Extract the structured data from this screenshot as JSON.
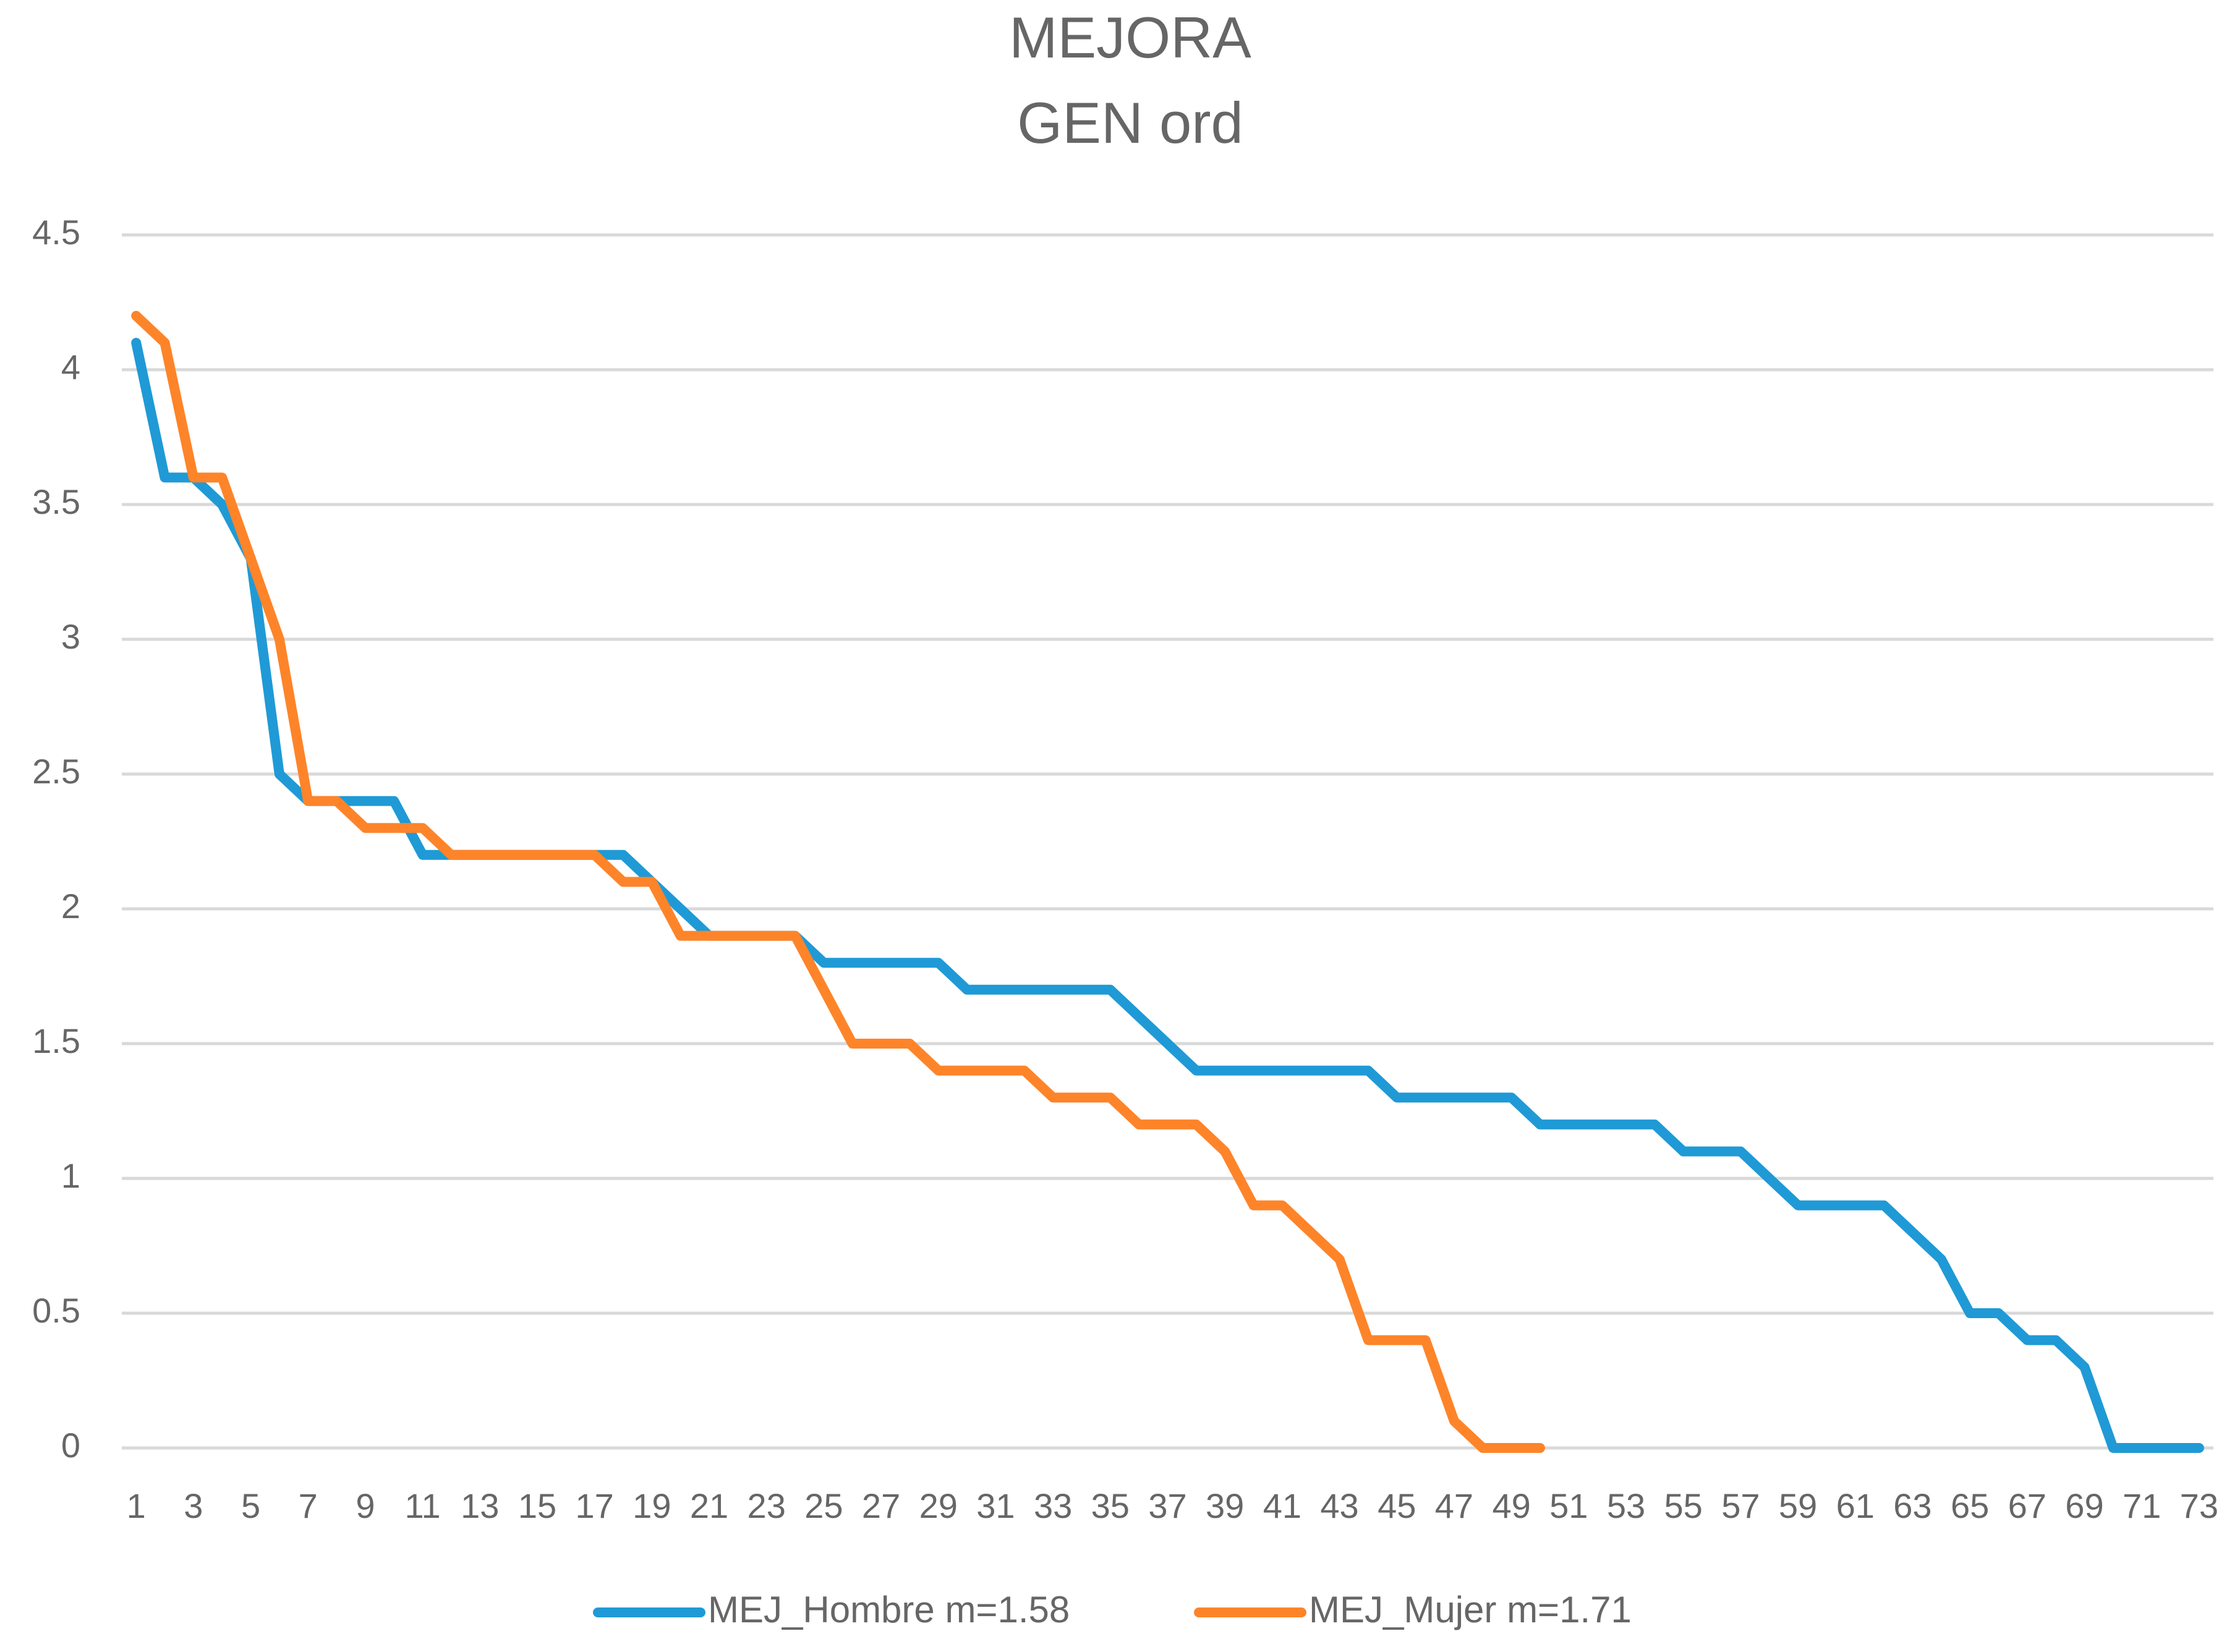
{
  "chart_data": {
    "type": "line",
    "title": "MEJORA",
    "subtitle": "GEN ord",
    "categories": [
      "1",
      null,
      "3",
      null,
      "5",
      null,
      "7",
      null,
      "9",
      null,
      "11",
      null,
      "13",
      null,
      "15",
      null,
      "17",
      null,
      "19",
      null,
      "21",
      null,
      "23",
      null,
      "25",
      null,
      "27",
      null,
      "29",
      null,
      "31",
      null,
      "33",
      null,
      "35",
      null,
      "37",
      null,
      "39",
      null,
      "41",
      null,
      "43",
      null,
      "45",
      null,
      "47",
      null,
      "49",
      null,
      "51",
      null,
      "53",
      null,
      "55",
      null,
      "57",
      null,
      "59",
      null,
      "61",
      null,
      "63",
      null,
      "65",
      null,
      "67",
      null,
      "69",
      null,
      "71",
      null,
      "73"
    ],
    "series": [
      {
        "name": "MEJ_Hombre m=1.58",
        "color": "#1f9ad6",
        "values": [
          4.1,
          3.6,
          3.6,
          3.5,
          3.3,
          2.5,
          2.4,
          2.4,
          2.4,
          2.4,
          2.2,
          2.2,
          2.2,
          2.2,
          2.2,
          2.2,
          2.2,
          2.2,
          2.1,
          2.0,
          1.9,
          1.9,
          1.9,
          1.9,
          1.8,
          1.8,
          1.8,
          1.8,
          1.8,
          1.7,
          1.7,
          1.7,
          1.7,
          1.7,
          1.7,
          1.6,
          1.5,
          1.4,
          1.4,
          1.4,
          1.4,
          1.4,
          1.4,
          1.4,
          1.3,
          1.3,
          1.3,
          1.3,
          1.3,
          1.2,
          1.2,
          1.2,
          1.2,
          1.2,
          1.1,
          1.1,
          1.1,
          1.0,
          0.9,
          0.9,
          0.9,
          0.9,
          0.8,
          0.7,
          0.5,
          0.5,
          0.4,
          0.4,
          0.3,
          0,
          0,
          0,
          0
        ]
      },
      {
        "name": "MEJ_Mujer m=1.71",
        "color": "#fe8429",
        "values": [
          4.2,
          4.1,
          3.6,
          3.6,
          3.3,
          3.0,
          2.4,
          2.4,
          2.3,
          2.3,
          2.3,
          2.2,
          2.2,
          2.2,
          2.2,
          2.2,
          2.2,
          2.1,
          2.1,
          1.9,
          1.9,
          1.9,
          1.9,
          1.9,
          1.7,
          1.5,
          1.5,
          1.5,
          1.4,
          1.4,
          1.4,
          1.4,
          1.3,
          1.3,
          1.3,
          1.2,
          1.2,
          1.2,
          1.1,
          0.9,
          0.9,
          0.8,
          0.7,
          0.4,
          0.4,
          0.4,
          0.1,
          0,
          0,
          0,
          null,
          null,
          null,
          null,
          null,
          null,
          null,
          null,
          null,
          null,
          null,
          null,
          null,
          null,
          null,
          null,
          null,
          null,
          null,
          null,
          null,
          null,
          null
        ]
      }
    ],
    "ylim": [
      0,
      4.5
    ],
    "yticks": [
      0,
      0.5,
      1,
      1.5,
      2,
      2.5,
      3,
      3.5,
      4,
      4.5
    ],
    "grid": true,
    "legend": "bottom"
  }
}
